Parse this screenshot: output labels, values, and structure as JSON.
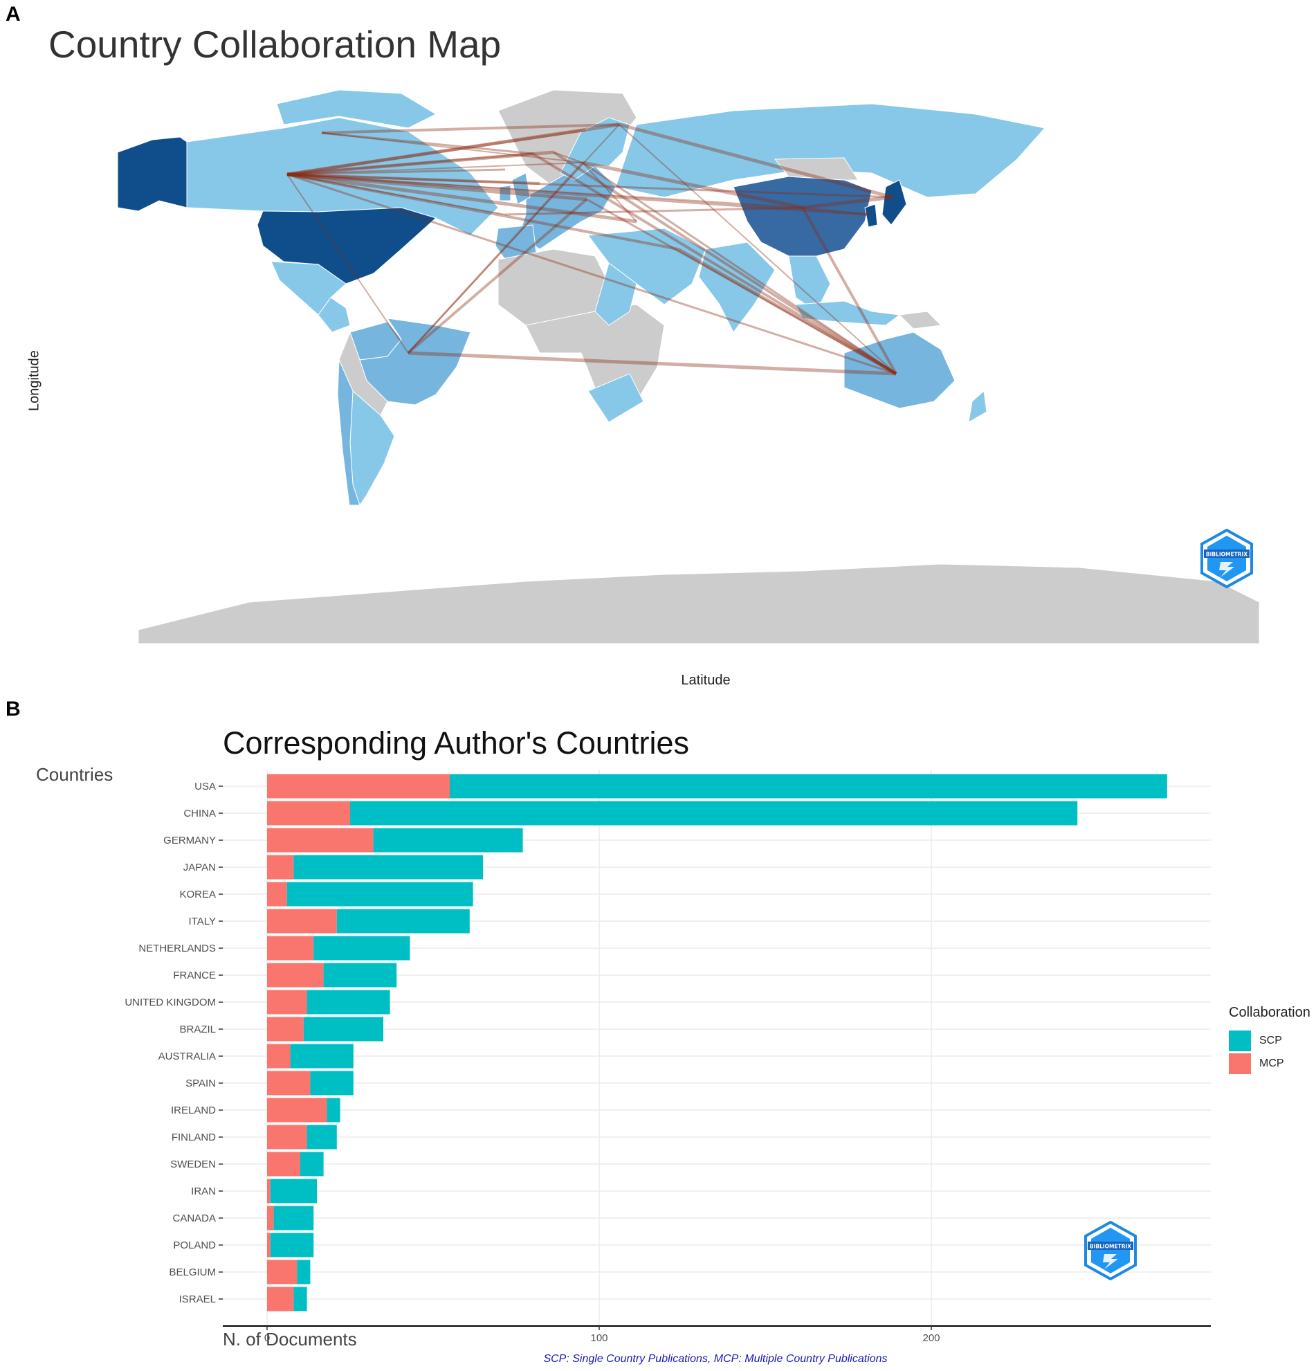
{
  "panels": {
    "a": {
      "letter": "A"
    },
    "b": {
      "letter": "B"
    }
  },
  "map": {
    "title": "Country Collaboration Map",
    "ylabel": "Longitude",
    "xlabel": "Latitude",
    "colors": {
      "none": "#cccccc",
      "low": "#87c8e8",
      "mid": "#76b6de",
      "high": "#3769a3",
      "top": "#0f4d8b",
      "link": "#8b2a10"
    },
    "collaboration_links": [
      [
        "USA",
        "GERMANY"
      ],
      [
        "USA",
        "UNITED KINGDOM"
      ],
      [
        "USA",
        "FRANCE"
      ],
      [
        "USA",
        "ITALY"
      ],
      [
        "USA",
        "CHINA"
      ],
      [
        "USA",
        "JAPAN"
      ],
      [
        "USA",
        "KOREA"
      ],
      [
        "USA",
        "NETHERLANDS"
      ],
      [
        "USA",
        "BRAZIL"
      ],
      [
        "USA",
        "AUSTRALIA"
      ],
      [
        "USA",
        "SWEDEN"
      ],
      [
        "USA",
        "FINLAND"
      ],
      [
        "USA",
        "SPAIN"
      ],
      [
        "USA",
        "IRELAND"
      ],
      [
        "USA",
        "IRAN"
      ],
      [
        "USA",
        "ISRAEL"
      ],
      [
        "CANADA",
        "GERMANY"
      ],
      [
        "CANADA",
        "UNITED KINGDOM"
      ],
      [
        "CANADA",
        "FINLAND"
      ],
      [
        "GERMANY",
        "CHINA"
      ],
      [
        "GERMANY",
        "NETHERLANDS"
      ],
      [
        "GERMANY",
        "AUSTRALIA"
      ],
      [
        "UNITED KINGDOM",
        "AUSTRALIA"
      ],
      [
        "FINLAND",
        "JAPAN"
      ],
      [
        "FINLAND",
        "AUSTRALIA"
      ],
      [
        "ITALY",
        "AUSTRALIA"
      ],
      [
        "CHINA",
        "AUSTRALIA"
      ],
      [
        "CHINA",
        "JAPAN"
      ],
      [
        "CHINA",
        "KOREA"
      ],
      [
        "BRAZIL",
        "GERMANY"
      ],
      [
        "BRAZIL",
        "ITALY"
      ],
      [
        "BRAZIL",
        "AUSTRALIA"
      ],
      [
        "BRAZIL",
        "FINLAND"
      ],
      [
        "SPAIN",
        "CHINA"
      ],
      [
        "NETHERLANDS",
        "AUSTRALIA"
      ],
      [
        "IRAN",
        "AUSTRALIA"
      ],
      [
        "ISRAEL",
        "GERMANY"
      ]
    ],
    "logo_text": "BIBLIOMETRIX"
  },
  "chart_data": {
    "type": "bar",
    "orientation": "horizontal",
    "stacked": true,
    "title": "Corresponding Author's Countries",
    "ylabel": "Countries",
    "xlabel": "N. of Documents",
    "categories": [
      "USA",
      "CHINA",
      "GERMANY",
      "JAPAN",
      "KOREA",
      "ITALY",
      "NETHERLANDS",
      "FRANCE",
      "UNITED KINGDOM",
      "BRAZIL",
      "AUSTRALIA",
      "SPAIN",
      "IRELAND",
      "FINLAND",
      "SWEDEN",
      "IRAN",
      "CANADA",
      "POLAND",
      "BELGIUM",
      "ISRAEL"
    ],
    "series": [
      {
        "name": "MCP",
        "color": "#f8766d",
        "values": [
          55,
          25,
          32,
          8,
          6,
          21,
          14,
          17,
          12,
          11,
          7,
          13,
          18,
          12,
          10,
          1,
          2,
          1,
          9,
          8
        ]
      },
      {
        "name": "SCP",
        "color": "#00bfc4",
        "values": [
          216,
          219,
          45,
          57,
          56,
          40,
          29,
          22,
          25,
          24,
          19,
          13,
          4,
          9,
          7,
          14,
          12,
          13,
          4,
          4
        ]
      }
    ],
    "xticks": [
      0,
      100,
      200
    ],
    "xlim": [
      0,
      285
    ],
    "grid": true,
    "legend": {
      "title": "Collaboration",
      "position": "right",
      "entries": [
        "SCP",
        "MCP"
      ]
    },
    "caption": "SCP: Single Country Publications, MCP: Multiple Country Publications",
    "logo_text": "BIBLIOMETRIX"
  }
}
